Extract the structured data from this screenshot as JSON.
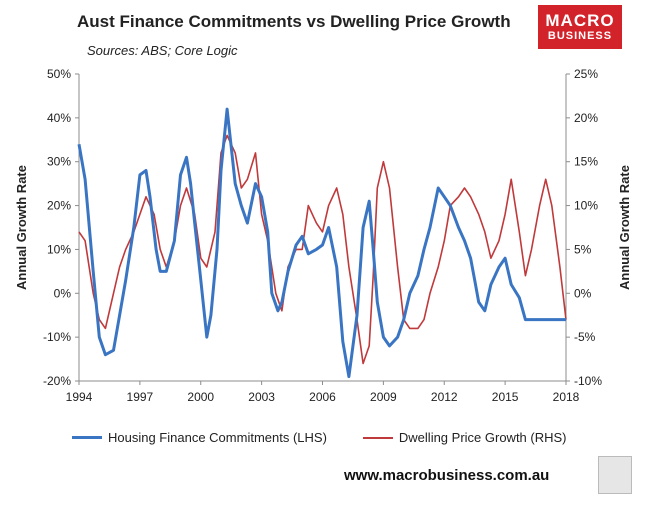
{
  "header": {
    "title": "Aust Finance Commitments vs Dwelling Price Growth",
    "sources": "Sources: ABS; Core Logic"
  },
  "logo": {
    "line1": "MACRO",
    "line2": "BUSINESS",
    "color": "#d3232a"
  },
  "footer": {
    "url": "www.macrobusiness.com.au"
  },
  "colors": {
    "housing": "#3a75c4",
    "dwelling": "#c0393b",
    "axis": "#8c8c8c"
  },
  "chart_data": {
    "type": "line",
    "title": "Aust Finance Commitments vs Dwelling Price Growth",
    "ylabel_left": "Annual Growth Rate",
    "ylabel_right": "Annual Growth Rate",
    "xlim": [
      1994,
      2018
    ],
    "ylim_left": [
      -20,
      50
    ],
    "ylim_right": [
      -10,
      25
    ],
    "x_ticks": [
      1994,
      1997,
      2000,
      2003,
      2006,
      2009,
      2012,
      2015,
      2018
    ],
    "y_ticks_left": [
      "50%",
      "40%",
      "30%",
      "20%",
      "10%",
      "0%",
      "-10%",
      "-20%"
    ],
    "y_ticks_right": [
      "25%",
      "20%",
      "15%",
      "10%",
      "5%",
      "0%",
      "-5%",
      "-10%"
    ],
    "grid": false,
    "legend_position": "bottom",
    "series": [
      {
        "name": "Housing Finance Commitments (LHS)",
        "axis": "left",
        "x": [
          1994.0,
          1994.3,
          1994.7,
          1995.0,
          1995.3,
          1995.7,
          1996.0,
          1996.3,
          1996.7,
          1997.0,
          1997.3,
          1997.5,
          1997.8,
          1998.0,
          1998.3,
          1998.7,
          1999.0,
          1999.3,
          1999.5,
          1999.7,
          2000.0,
          2000.3,
          2000.5,
          2000.8,
          2001.0,
          2001.3,
          2001.7,
          2002.0,
          2002.3,
          2002.7,
          2003.0,
          2003.3,
          2003.5,
          2003.8,
          2004.0,
          2004.3,
          2004.7,
          2005.0,
          2005.3,
          2005.7,
          2006.0,
          2006.3,
          2006.7,
          2007.0,
          2007.3,
          2007.7,
          2008.0,
          2008.3,
          2008.5,
          2008.7,
          2009.0,
          2009.3,
          2009.7,
          2010.0,
          2010.3,
          2010.7,
          2011.0,
          2011.3,
          2011.7,
          2012.0,
          2012.3,
          2012.7,
          2013.0,
          2013.3,
          2013.5,
          2013.7,
          2014.0,
          2014.3,
          2014.7,
          2015.0,
          2015.3,
          2015.7,
          2016.0,
          2016.3,
          2016.7,
          2017.0,
          2017.3,
          2017.5,
          2017.8,
          2018.0
        ],
        "values": [
          34,
          26,
          5,
          -10,
          -14,
          -13,
          -5,
          3,
          15,
          27,
          28,
          22,
          10,
          5,
          5,
          12,
          27,
          31,
          25,
          16,
          3,
          -10,
          -5,
          10,
          28,
          42,
          25,
          20,
          16,
          25,
          22,
          14,
          0,
          -4,
          -2,
          5,
          11,
          13,
          9,
          10,
          11,
          15,
          6,
          -11,
          -19,
          -5,
          15,
          21,
          10,
          -2,
          -10,
          -12,
          -10,
          -6,
          0,
          4,
          10,
          15,
          24,
          22,
          20,
          15,
          12,
          8,
          3,
          -2,
          -4,
          2,
          6,
          8,
          2,
          -1,
          -6,
          -6,
          -6,
          -6,
          -6,
          -6,
          -6,
          -6
        ]
      },
      {
        "name": "Dwelling Price Growth (RHS)",
        "axis": "right",
        "x": [
          1994.0,
          1994.3,
          1994.7,
          1995.0,
          1995.3,
          1995.7,
          1996.0,
          1996.3,
          1996.7,
          1997.0,
          1997.3,
          1997.7,
          1998.0,
          1998.3,
          1998.7,
          1999.0,
          1999.3,
          1999.7,
          2000.0,
          2000.3,
          2000.7,
          2001.0,
          2001.3,
          2001.7,
          2002.0,
          2002.3,
          2002.7,
          2003.0,
          2003.3,
          2003.7,
          2004.0,
          2004.3,
          2004.7,
          2005.0,
          2005.3,
          2005.7,
          2006.0,
          2006.3,
          2006.7,
          2007.0,
          2007.3,
          2007.7,
          2008.0,
          2008.3,
          2008.5,
          2008.7,
          2009.0,
          2009.3,
          2009.7,
          2010.0,
          2010.3,
          2010.7,
          2011.0,
          2011.3,
          2011.7,
          2012.0,
          2012.3,
          2012.7,
          2013.0,
          2013.3,
          2013.7,
          2014.0,
          2014.3,
          2014.7,
          2015.0,
          2015.3,
          2015.7,
          2016.0,
          2016.3,
          2016.7,
          2017.0,
          2017.3,
          2017.7,
          2018.0
        ],
        "values": [
          7,
          6,
          0,
          -3,
          -4,
          0,
          3,
          5,
          7,
          9,
          11,
          9,
          5,
          3,
          6,
          10,
          12,
          9,
          4,
          3,
          7,
          16,
          18,
          16,
          12,
          13,
          16,
          9,
          6,
          0,
          -2,
          3,
          5,
          5,
          10,
          8,
          7,
          10,
          12,
          9,
          3,
          -3,
          -8,
          -6,
          2,
          12,
          15,
          12,
          3,
          -3,
          -4,
          -4,
          -3,
          0,
          3,
          6,
          10,
          11,
          12,
          11,
          9,
          7,
          4,
          6,
          9,
          13,
          7,
          2,
          5,
          10,
          13,
          10,
          3,
          -3
        ]
      }
    ]
  }
}
